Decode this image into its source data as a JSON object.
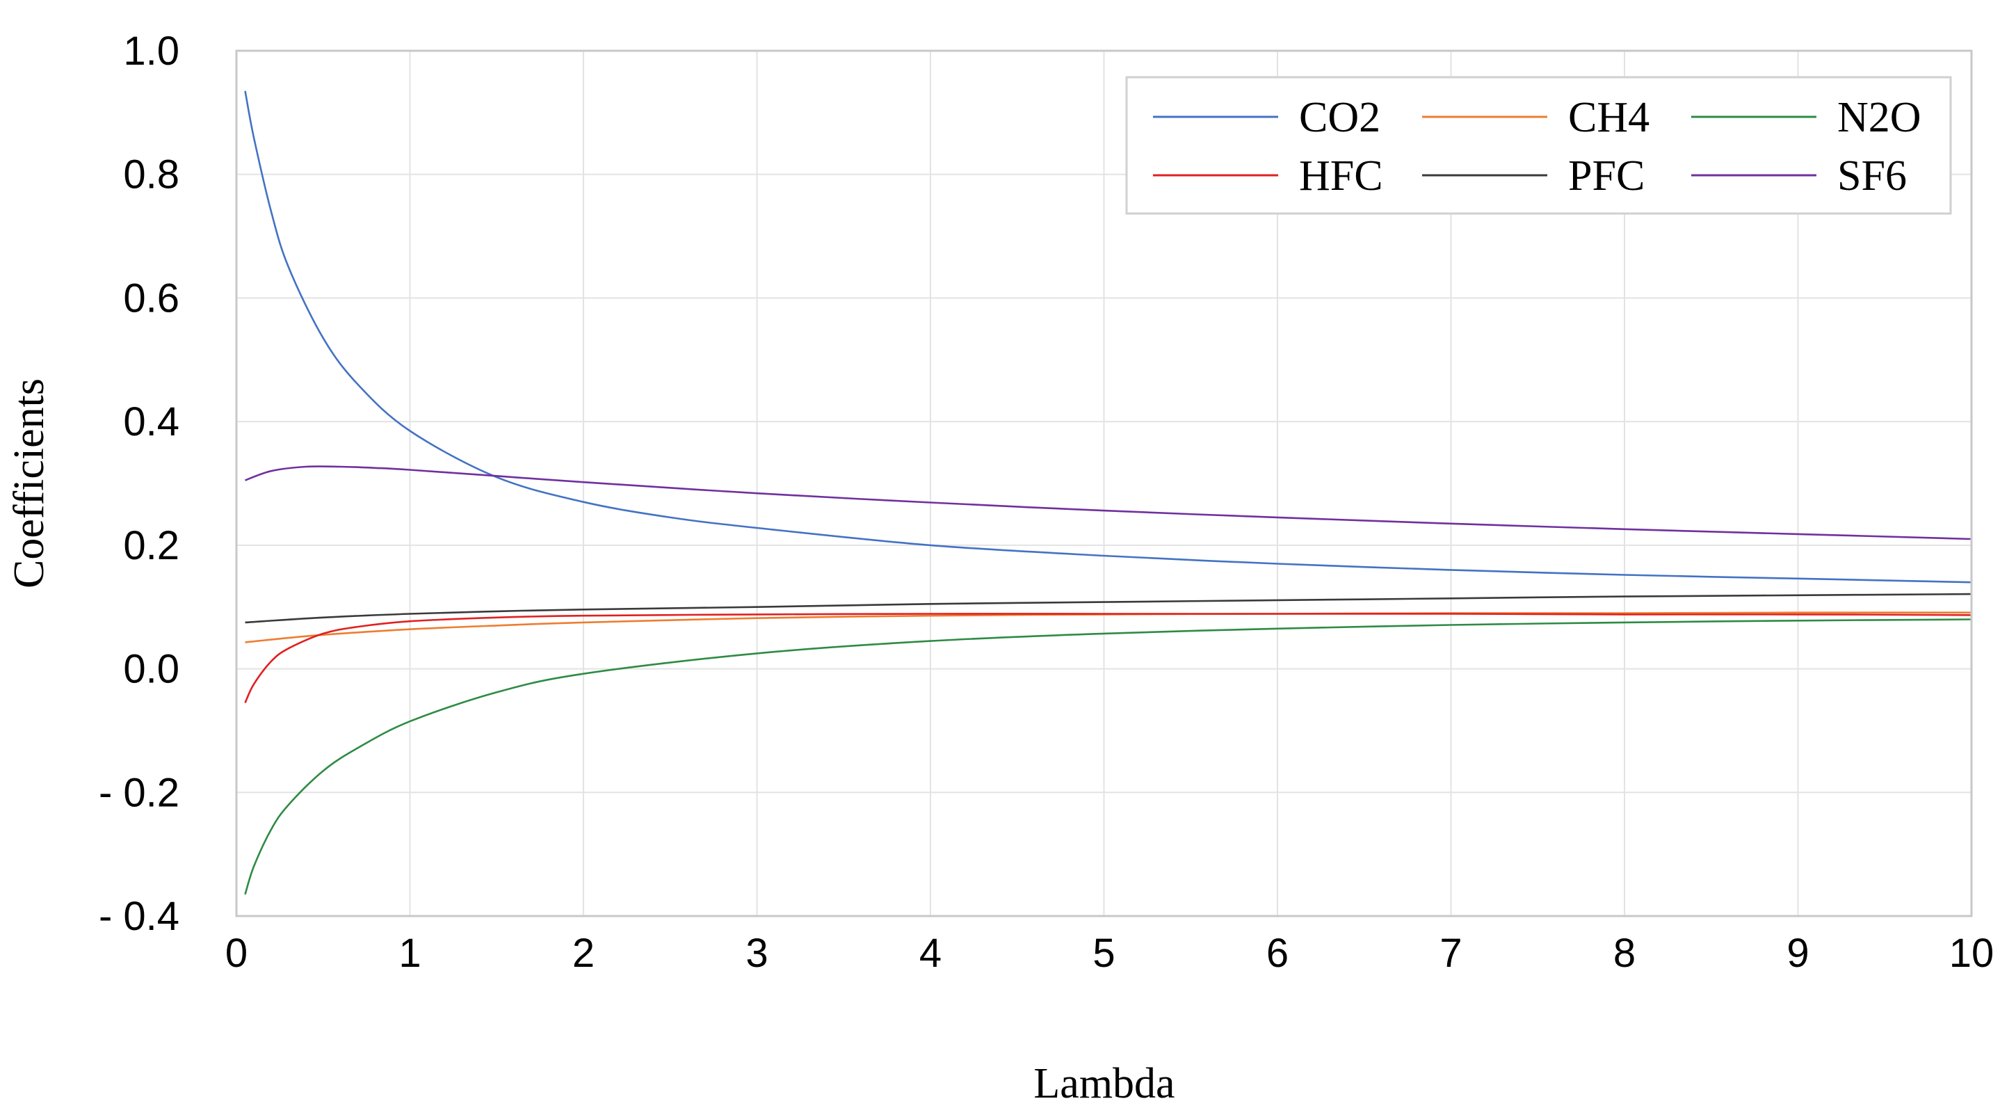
{
  "chart_data": {
    "type": "line",
    "title": "",
    "xlabel": "Lambda",
    "ylabel": "Coefficients",
    "xlim": [
      0,
      10
    ],
    "ylim": [
      -0.4,
      1.0
    ],
    "x_ticks": [
      0,
      1,
      2,
      3,
      4,
      5,
      6,
      7,
      8,
      9,
      10
    ],
    "x_tick_labels": [
      "0",
      "1",
      "2",
      "3",
      "4",
      "5",
      "6",
      "7",
      "8",
      "9",
      "10"
    ],
    "y_ticks": [
      1.0,
      0.8,
      0.6,
      0.4,
      0.2,
      0.0,
      -0.2,
      -0.4
    ],
    "y_tick_labels": [
      "1.0",
      "0.8",
      "0.6",
      "0.4",
      "0.2",
      "0.0",
      "- 0.2",
      "- 0.4"
    ],
    "grid": true,
    "legend_position": "top-right",
    "series": [
      {
        "name": "CO2",
        "color": "#4472c4",
        "x": [
          0.05,
          0.1,
          0.2,
          0.3,
          0.5,
          0.7,
          1.0,
          1.5,
          2,
          2.5,
          3,
          4,
          5,
          6,
          7,
          8,
          9,
          10
        ],
        "values": [
          0.935,
          0.86,
          0.74,
          0.65,
          0.535,
          0.46,
          0.385,
          0.31,
          0.27,
          0.245,
          0.228,
          0.2,
          0.183,
          0.17,
          0.16,
          0.152,
          0.146,
          0.14
        ]
      },
      {
        "name": "CH4",
        "color": "#ed7d31",
        "x": [
          0.05,
          0.3,
          0.5,
          1,
          1.5,
          2,
          3,
          4,
          5,
          6,
          7,
          8,
          9,
          10
        ],
        "values": [
          0.043,
          0.05,
          0.055,
          0.064,
          0.07,
          0.075,
          0.082,
          0.086,
          0.088,
          0.089,
          0.09,
          0.09,
          0.091,
          0.091
        ]
      },
      {
        "name": "N2O",
        "color": "#2e8b44",
        "x": [
          0.05,
          0.1,
          0.2,
          0.3,
          0.5,
          0.7,
          1.0,
          1.5,
          2,
          3,
          4,
          5,
          6,
          7,
          8,
          9,
          10
        ],
        "values": [
          -0.365,
          -0.32,
          -0.26,
          -0.22,
          -0.165,
          -0.128,
          -0.085,
          -0.038,
          -0.008,
          0.025,
          0.045,
          0.057,
          0.065,
          0.071,
          0.075,
          0.078,
          0.08
        ]
      },
      {
        "name": "HFC",
        "color": "#e02020",
        "x": [
          0.05,
          0.1,
          0.2,
          0.3,
          0.5,
          0.7,
          1.0,
          1.5,
          2,
          3,
          4,
          5,
          6,
          7,
          8,
          9,
          10
        ],
        "values": [
          -0.055,
          -0.025,
          0.012,
          0.033,
          0.057,
          0.068,
          0.077,
          0.083,
          0.086,
          0.088,
          0.089,
          0.089,
          0.089,
          0.089,
          0.088,
          0.088,
          0.087
        ]
      },
      {
        "name": "PFC",
        "color": "#3a3a3a",
        "x": [
          0.05,
          0.5,
          1,
          1.5,
          2,
          3,
          4,
          5,
          6,
          7,
          8,
          9,
          10
        ],
        "values": [
          0.075,
          0.083,
          0.089,
          0.093,
          0.096,
          0.1,
          0.105,
          0.108,
          0.111,
          0.114,
          0.117,
          0.119,
          0.121
        ]
      },
      {
        "name": "SF6",
        "color": "#7030a0",
        "x": [
          0.05,
          0.2,
          0.4,
          0.6,
          0.8,
          1.0,
          1.5,
          2,
          3,
          4,
          5,
          6,
          7,
          8,
          9,
          10
        ],
        "values": [
          0.305,
          0.32,
          0.327,
          0.327,
          0.325,
          0.322,
          0.312,
          0.302,
          0.284,
          0.269,
          0.256,
          0.245,
          0.235,
          0.226,
          0.218,
          0.21
        ]
      }
    ]
  }
}
